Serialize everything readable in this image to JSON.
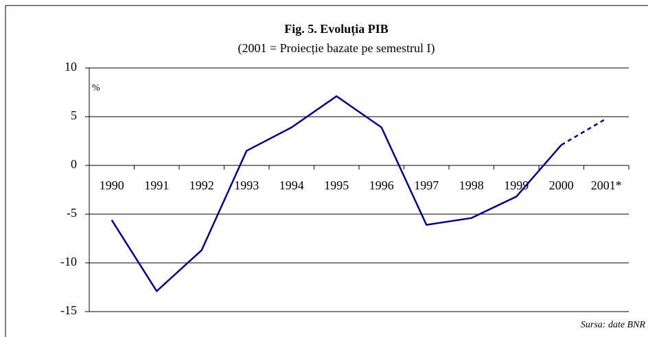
{
  "chart_data": {
    "type": "line",
    "title": "Fig. 5. Evoluția PIB",
    "subtitle": "(2001 = Proiecție bazate pe semestrul I)",
    "y_unit": "%",
    "source": "Sursa: date BNR",
    "categories": [
      "1990",
      "1991",
      "1992",
      "1993",
      "1994",
      "1995",
      "1996",
      "1997",
      "1998",
      "1999",
      "2000",
      "2001*"
    ],
    "series": [
      {
        "color": "#000080",
        "dashed": false,
        "values": [
          -5.6,
          -12.9,
          -8.7,
          1.5,
          3.9,
          7.1,
          3.9,
          -6.1,
          -5.4,
          -3.2,
          2.1,
          null
        ]
      },
      {
        "color": "#000080",
        "dashed": true,
        "values": [
          null,
          null,
          null,
          null,
          null,
          null,
          null,
          null,
          null,
          null,
          2.1,
          4.8
        ]
      }
    ],
    "ylim": [
      -15,
      10
    ],
    "yticks": [
      -15,
      -10,
      -5,
      0,
      5,
      10
    ],
    "grid": true
  }
}
